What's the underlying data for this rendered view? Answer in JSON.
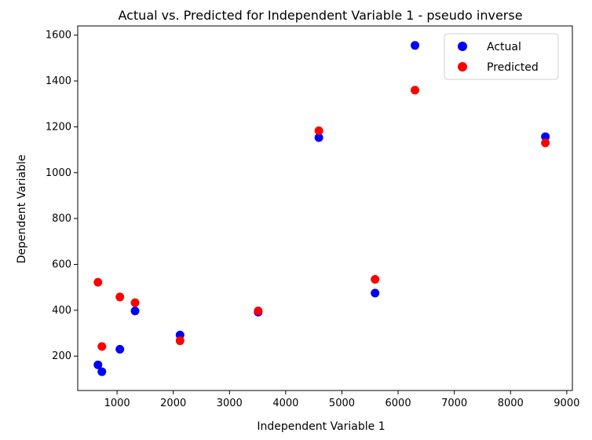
{
  "chart_data": {
    "type": "scatter",
    "title": "Actual vs. Predicted for Independent Variable 1 - pseudo inverse",
    "xlabel": "Independent Variable 1",
    "ylabel": "Dependent Variable",
    "xlim": [
      300,
      9100
    ],
    "ylim": [
      50,
      1640
    ],
    "xticks": [
      1000,
      2000,
      3000,
      4000,
      5000,
      6000,
      7000,
      8000,
      9000
    ],
    "yticks": [
      200,
      400,
      600,
      800,
      1000,
      1200,
      1400,
      1600
    ],
    "grid": false,
    "legend": "top-right",
    "series": [
      {
        "name": "Actual",
        "color": "#0000ff",
        "points": [
          [
            660,
            162
          ],
          [
            730,
            132
          ],
          [
            1050,
            230
          ],
          [
            1320,
            397
          ],
          [
            2120,
            292
          ],
          [
            3510,
            392
          ],
          [
            4590,
            1153
          ],
          [
            5590,
            475
          ],
          [
            6300,
            1555
          ],
          [
            8620,
            1157
          ]
        ]
      },
      {
        "name": "Predicted",
        "color": "#ff0000",
        "points": [
          [
            660,
            522
          ],
          [
            730,
            242
          ],
          [
            1050,
            458
          ],
          [
            1320,
            433
          ],
          [
            2120,
            267
          ],
          [
            3510,
            397
          ],
          [
            4590,
            1183
          ],
          [
            5590,
            535
          ],
          [
            6300,
            1360
          ],
          [
            8620,
            1130
          ]
        ]
      }
    ]
  }
}
